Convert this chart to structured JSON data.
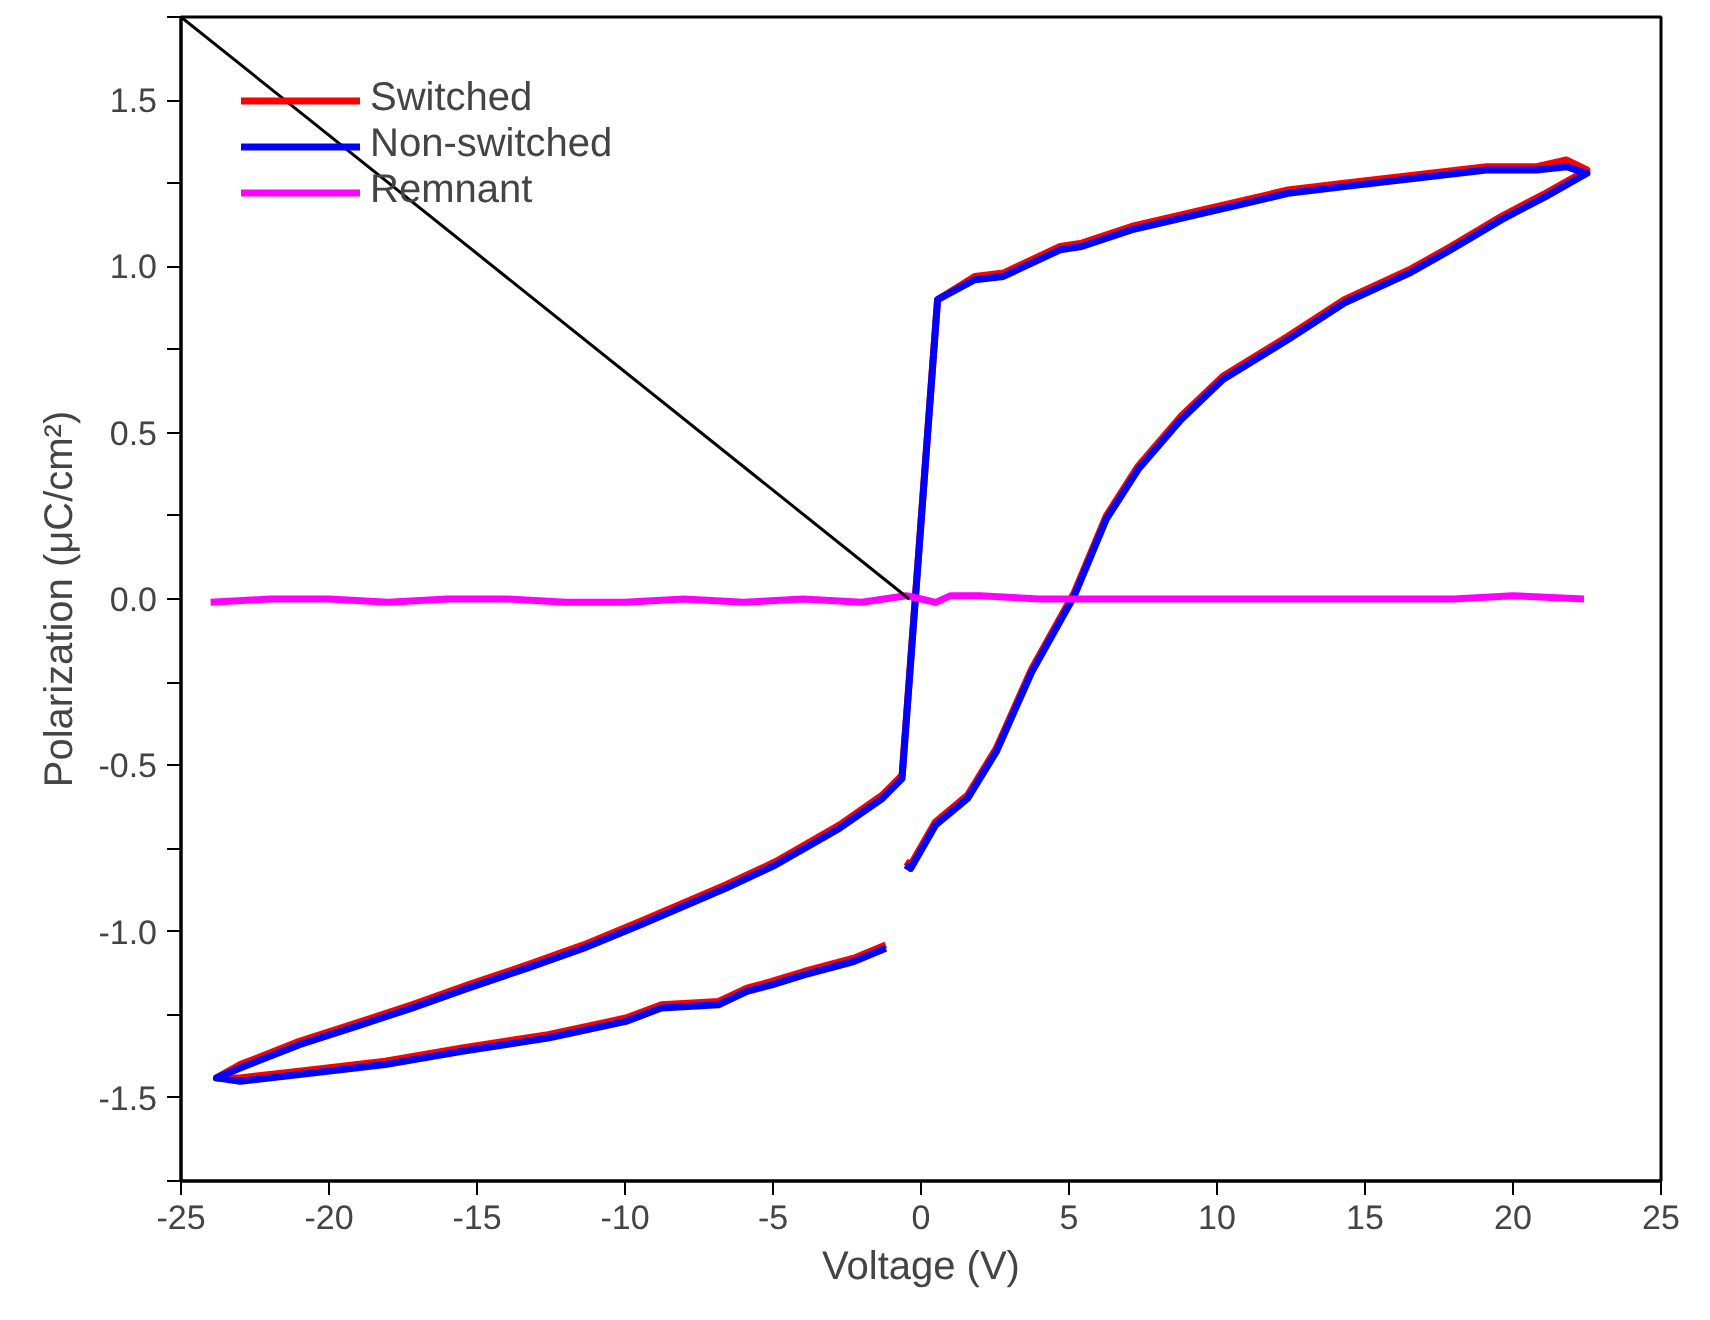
{
  "chart_data": {
    "type": "line",
    "xlabel": "Voltage (V)",
    "ylabel": "Polarization (μC/cm²)",
    "xlim": [
      -25,
      25
    ],
    "ylim": [
      -1.75,
      1.75
    ],
    "xticks": [
      -25,
      -20,
      -15,
      -10,
      -5,
      0,
      5,
      10,
      15,
      20,
      25
    ],
    "yticks": [
      {
        "value": -1.75,
        "label": null
      },
      -1.5,
      {
        "value": -1.25,
        "label": null
      },
      {
        "value": -1.0,
        "label": "-1.0"
      },
      {
        "value": -0.75,
        "label": null
      },
      -0.5,
      {
        "value": -0.25,
        "label": null
      },
      {
        "value": 0.0,
        "label": "0.0"
      },
      {
        "value": 0.25,
        "label": null
      },
      0.5,
      {
        "value": 0.75,
        "label": null
      },
      {
        "value": 1.0,
        "label": "1.0"
      },
      {
        "value": 1.25,
        "label": null
      },
      1.5,
      {
        "value": 1.75,
        "label": null
      }
    ],
    "grid": false,
    "legend": "top left",
    "marker": "none",
    "line_style": "solid",
    "series": [
      {
        "name": "Switched",
        "color": "#ff0000",
        "x": [
          -1.19,
          -2.27,
          -3.95,
          -5.04,
          -5.88,
          -6.84,
          -8.77,
          -9.97,
          -12.6,
          -15.5,
          -18.1,
          -21.0,
          -23.0,
          -23.8,
          -23.0,
          -21.0,
          -18.9,
          -17.2,
          -15.3,
          -13.3,
          -11.4,
          -9.49,
          -6.6,
          -4.92,
          -2.76,
          -1.31,
          -0.64,
          0.56,
          1.82,
          2.78,
          4.7,
          5.43,
          7.11,
          9.51,
          10.5,
          12.4,
          14.3,
          16.2,
          19.1,
          20.8,
          21.8,
          22.5,
          21.1,
          19.6,
          17.9,
          16.5,
          14.3,
          12.4,
          10.2,
          8.79,
          7.34,
          6.26,
          5.18,
          3.74,
          2.54,
          1.57,
          0.49,
          -0.35,
          -0.52
        ],
        "values": [
          -1.04,
          -1.08,
          -1.12,
          -1.15,
          -1.17,
          -1.21,
          -1.22,
          -1.26,
          -1.31,
          -1.35,
          -1.39,
          -1.42,
          -1.44,
          -1.44,
          -1.4,
          -1.33,
          -1.27,
          -1.22,
          -1.16,
          -1.1,
          -1.04,
          -0.97,
          -0.86,
          -0.79,
          -0.68,
          -0.59,
          -0.53,
          0.9,
          0.97,
          0.98,
          1.06,
          1.07,
          1.12,
          1.17,
          1.19,
          1.23,
          1.25,
          1.27,
          1.3,
          1.3,
          1.32,
          1.29,
          1.22,
          1.15,
          1.06,
          0.99,
          0.9,
          0.79,
          0.67,
          0.55,
          0.4,
          0.25,
          0.02,
          -0.21,
          -0.45,
          -0.59,
          -0.67,
          -0.8,
          -0.79
        ]
      },
      {
        "name": "Non-switched",
        "color": "#0000ff",
        "x": [
          -1.19,
          -2.27,
          -3.95,
          -5.04,
          -5.88,
          -6.84,
          -8.77,
          -9.97,
          -12.6,
          -15.5,
          -18.1,
          -21.0,
          -23.0,
          -23.8,
          -23.0,
          -21.0,
          -18.9,
          -17.2,
          -15.3,
          -13.3,
          -11.4,
          -9.49,
          -6.6,
          -4.92,
          -2.76,
          -1.31,
          -0.64,
          0.56,
          1.82,
          2.78,
          4.7,
          5.43,
          7.11,
          9.51,
          10.5,
          12.4,
          14.3,
          16.2,
          19.1,
          20.8,
          21.8,
          22.5,
          21.1,
          19.6,
          17.9,
          16.5,
          14.3,
          12.4,
          10.2,
          8.79,
          7.34,
          6.26,
          5.18,
          3.74,
          2.54,
          1.57,
          0.49,
          -0.35,
          -0.52
        ],
        "values": [
          -1.05,
          -1.09,
          -1.13,
          -1.16,
          -1.18,
          -1.22,
          -1.23,
          -1.27,
          -1.32,
          -1.36,
          -1.4,
          -1.43,
          -1.45,
          -1.44,
          -1.41,
          -1.34,
          -1.28,
          -1.23,
          -1.17,
          -1.11,
          -1.05,
          -0.98,
          -0.87,
          -0.8,
          -0.69,
          -0.6,
          -0.54,
          0.9,
          0.96,
          0.97,
          1.05,
          1.06,
          1.11,
          1.16,
          1.18,
          1.22,
          1.24,
          1.26,
          1.29,
          1.29,
          1.3,
          1.28,
          1.21,
          1.14,
          1.05,
          0.98,
          0.89,
          0.78,
          0.66,
          0.54,
          0.39,
          0.24,
          0.01,
          -0.22,
          -0.46,
          -0.6,
          -0.68,
          -0.81,
          -0.8
        ]
      },
      {
        "name": "Remnant",
        "color": "#ff00ff",
        "x": [
          -24,
          -22,
          -20,
          -18,
          -16,
          -14,
          -12,
          -10,
          -8,
          -6,
          -4,
          -2,
          -0.5,
          0,
          0.5,
          1,
          2,
          4,
          6,
          8,
          10,
          12,
          14,
          16,
          18,
          20,
          22.4
        ],
        "values": [
          -0.01,
          0.0,
          0.0,
          -0.01,
          0.0,
          0.0,
          -0.01,
          -0.01,
          0.0,
          -0.01,
          0.0,
          -0.01,
          0.01,
          0.0,
          -0.01,
          0.01,
          0.01,
          0.0,
          0.0,
          0.0,
          0.0,
          0.0,
          0.0,
          0.0,
          0.0,
          0.01,
          0.0
        ]
      },
      {
        "color": "#000000",
        "x": [
          -25,
          -0.4
        ],
        "values": [
          1.75,
          0.0
        ]
      }
    ]
  }
}
